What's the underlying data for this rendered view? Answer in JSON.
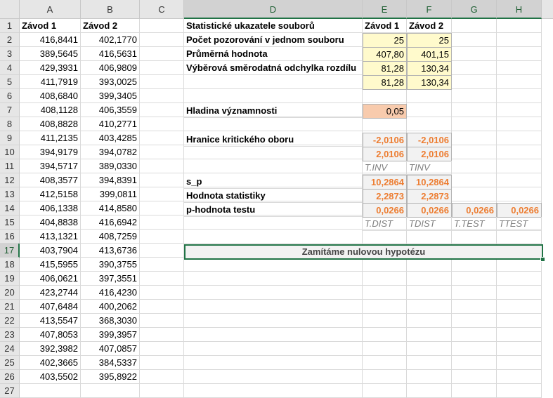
{
  "columns": [
    "A",
    "B",
    "C",
    "D",
    "E",
    "F",
    "G",
    "H"
  ],
  "rows": [
    "1",
    "2",
    "3",
    "4",
    "5",
    "6",
    "7",
    "8",
    "9",
    "10",
    "11",
    "12",
    "13",
    "14",
    "15",
    "16",
    "17",
    "18",
    "19",
    "20",
    "21",
    "22",
    "23",
    "24",
    "25",
    "26",
    "27"
  ],
  "colA": [
    "Závod 1",
    "416,8441",
    "389,5645",
    "429,3931",
    "411,7919",
    "408,6840",
    "408,1128",
    "408,8828",
    "411,2135",
    "394,9179",
    "394,5717",
    "408,3577",
    "412,5158",
    "406,1338",
    "404,8838",
    "413,1321",
    "403,7904",
    "415,5955",
    "406,0621",
    "423,2744",
    "407,6484",
    "413,5547",
    "407,8053",
    "392,3982",
    "402,3665",
    "403,5502"
  ],
  "colB": [
    "Závod 2",
    "402,1770",
    "416,5631",
    "406,9809",
    "393,0025",
    "399,3405",
    "406,3559",
    "410,2771",
    "403,4285",
    "394,0782",
    "389,0330",
    "394,8391",
    "399,0811",
    "414,8580",
    "416,6942",
    "408,7259",
    "413,6736",
    "390,3755",
    "397,3551",
    "416,4230",
    "400,2062",
    "368,3030",
    "399,3957",
    "407,0857",
    "384,5337",
    "395,8922"
  ],
  "stats": {
    "title": "Statistické ukazatele souborů",
    "e1": "Závod 1",
    "f1": "Závod 2",
    "n_label": "Počet pozorování v jednom souboru",
    "n_e": "25",
    "n_f": "25",
    "mean_label": "Průměrná hodnota",
    "mean_e": "407,80",
    "mean_f": "401,15",
    "sd_label": "Výběrová směrodatná odchylka rozdílu",
    "sd_e": "81,28",
    "sd_f": "130,34",
    "sd2_e": "81,28",
    "sd2_f": "130,34",
    "alpha_label": "Hladina významnosti",
    "alpha": "0,05",
    "crit_label": "Hranice kritického oboru",
    "crit_e1": "-2,0106",
    "crit_f1": "-2,0106",
    "crit_e2": "2,0106",
    "crit_f2": "2,0106",
    "fn_tinv": "T.INV",
    "fn_tinv2": "TINV",
    "sp_label": "s_p",
    "sp_e": "10,2864",
    "sp_f": "10,2864",
    "stat_label": "Hodnota statistiky",
    "stat_e": "2,2873",
    "stat_f": "2,2873",
    "p_label": "p-hodnota testu",
    "p_e": "0,0266",
    "p_f": "0,0266",
    "p_g": "0,0266",
    "p_h": "0,0266",
    "fn_tdist": "T.DIST",
    "fn_tdist2": "TDIST",
    "fn_ttest": "T.TEST",
    "fn_ttest2": "TTEST",
    "conclusion": "Zamítáme nulovou hypotézu"
  }
}
